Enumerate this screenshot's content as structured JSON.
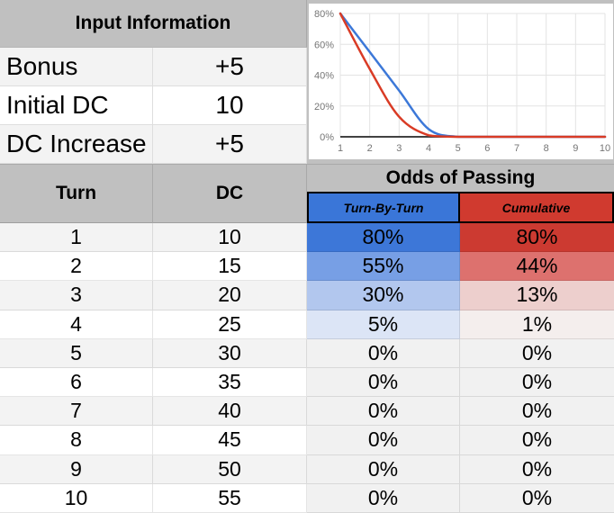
{
  "input_info": {
    "title": "Input Information",
    "rows": [
      {
        "label": "Bonus",
        "value": "+5"
      },
      {
        "label": "Initial DC",
        "value": "10"
      },
      {
        "label": "DC Increase",
        "value": "+5"
      }
    ]
  },
  "odds_header": {
    "title": "Odds of Passing",
    "tbt": "Turn-By-Turn",
    "cum": "Cumulative"
  },
  "table": {
    "headers": {
      "turn": "Turn",
      "dc": "DC"
    },
    "rows": [
      {
        "turn": "1",
        "dc": "10",
        "tbt": "80%",
        "cum": "80%",
        "tbt_bg": "#3d77d8",
        "cum_bg": "#cc3a31"
      },
      {
        "turn": "2",
        "dc": "15",
        "tbt": "55%",
        "cum": "44%",
        "tbt_bg": "#779fe5",
        "cum_bg": "#dd716e"
      },
      {
        "turn": "3",
        "dc": "20",
        "tbt": "30%",
        "cum": "13%",
        "tbt_bg": "#b2c7ee",
        "cum_bg": "#edcfcd"
      },
      {
        "turn": "4",
        "dc": "25",
        "tbt": "5%",
        "cum": "1%",
        "tbt_bg": "#dce5f6",
        "cum_bg": "#f4eeed"
      },
      {
        "turn": "5",
        "dc": "30",
        "tbt": "0%",
        "cum": "0%",
        "tbt_bg": "#f1f1f1",
        "cum_bg": "#f1f1f1"
      },
      {
        "turn": "6",
        "dc": "35",
        "tbt": "0%",
        "cum": "0%",
        "tbt_bg": "#f1f1f1",
        "cum_bg": "#f1f1f1"
      },
      {
        "turn": "7",
        "dc": "40",
        "tbt": "0%",
        "cum": "0%",
        "tbt_bg": "#f1f1f1",
        "cum_bg": "#f1f1f1"
      },
      {
        "turn": "8",
        "dc": "45",
        "tbt": "0%",
        "cum": "0%",
        "tbt_bg": "#f1f1f1",
        "cum_bg": "#f1f1f1"
      },
      {
        "turn": "9",
        "dc": "50",
        "tbt": "0%",
        "cum": "0%",
        "tbt_bg": "#f1f1f1",
        "cum_bg": "#f1f1f1"
      },
      {
        "turn": "10",
        "dc": "55",
        "tbt": "0%",
        "cum": "0%",
        "tbt_bg": "#f1f1f1",
        "cum_bg": "#f1f1f1"
      }
    ]
  },
  "chart_data": {
    "type": "line",
    "line_style": "smooth",
    "x": [
      1,
      2,
      3,
      4,
      5,
      6,
      7,
      8,
      9,
      10
    ],
    "xtick_labels": [
      "1",
      "2",
      "3",
      "4",
      "5",
      "6",
      "7",
      "8",
      "9",
      "10"
    ],
    "yticks": [
      0,
      20,
      40,
      60,
      80
    ],
    "ytick_labels": [
      "0%",
      "20%",
      "40%",
      "60%",
      "80%"
    ],
    "ylim": [
      0,
      80
    ],
    "grid": true,
    "legend": "none",
    "series": [
      {
        "name": "Turn-By-Turn",
        "color": "#3c78d8",
        "values": [
          80,
          55,
          30,
          5,
          0,
          0,
          0,
          0,
          0,
          0
        ]
      },
      {
        "name": "Cumulative",
        "color": "#d93b25",
        "values": [
          80,
          44,
          13,
          1,
          0,
          0,
          0,
          0,
          0,
          0
        ]
      }
    ]
  },
  "colors": {
    "header_gray": "#c0c0c0",
    "row_stripe": "#f3f3f3",
    "tbt_header_bg": "#3a76d8",
    "cum_header_bg": "#d03a2f",
    "chart_blue": "#3c78d8",
    "chart_red": "#d93b25",
    "axis_label": "#757575",
    "gridline": "#e3e3e3",
    "baseline": "#424242"
  }
}
